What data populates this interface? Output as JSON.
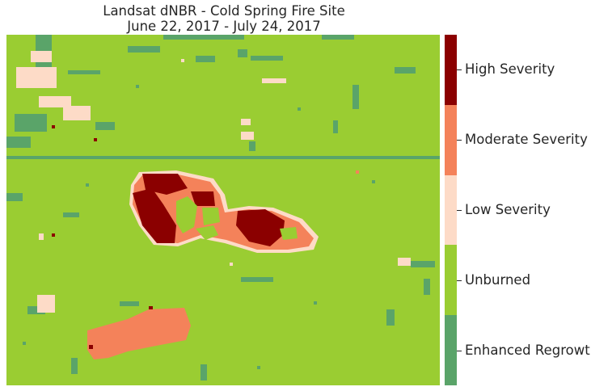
{
  "title": {
    "line1": "Landsat dNBR - Cold Spring Fire Site",
    "line2": "June 22, 2017 - July 24, 2017"
  },
  "colors": {
    "enhanced_regrowth": "#5aa469",
    "unburned": "#9acd32",
    "low_severity": "#fddbc7",
    "moderate_severity": "#f4825a",
    "high_severity": "#8b0000"
  },
  "legend": {
    "classes": [
      {
        "key": "enhanced_regrowth",
        "label": "Enhanced Regrowth"
      },
      {
        "key": "unburned",
        "label": "Unburned"
      },
      {
        "key": "low_severity",
        "label": "Low Severity"
      },
      {
        "key": "moderate_severity",
        "label": "Moderate Severity"
      },
      {
        "key": "high_severity",
        "label": "High Severity"
      }
    ]
  }
}
